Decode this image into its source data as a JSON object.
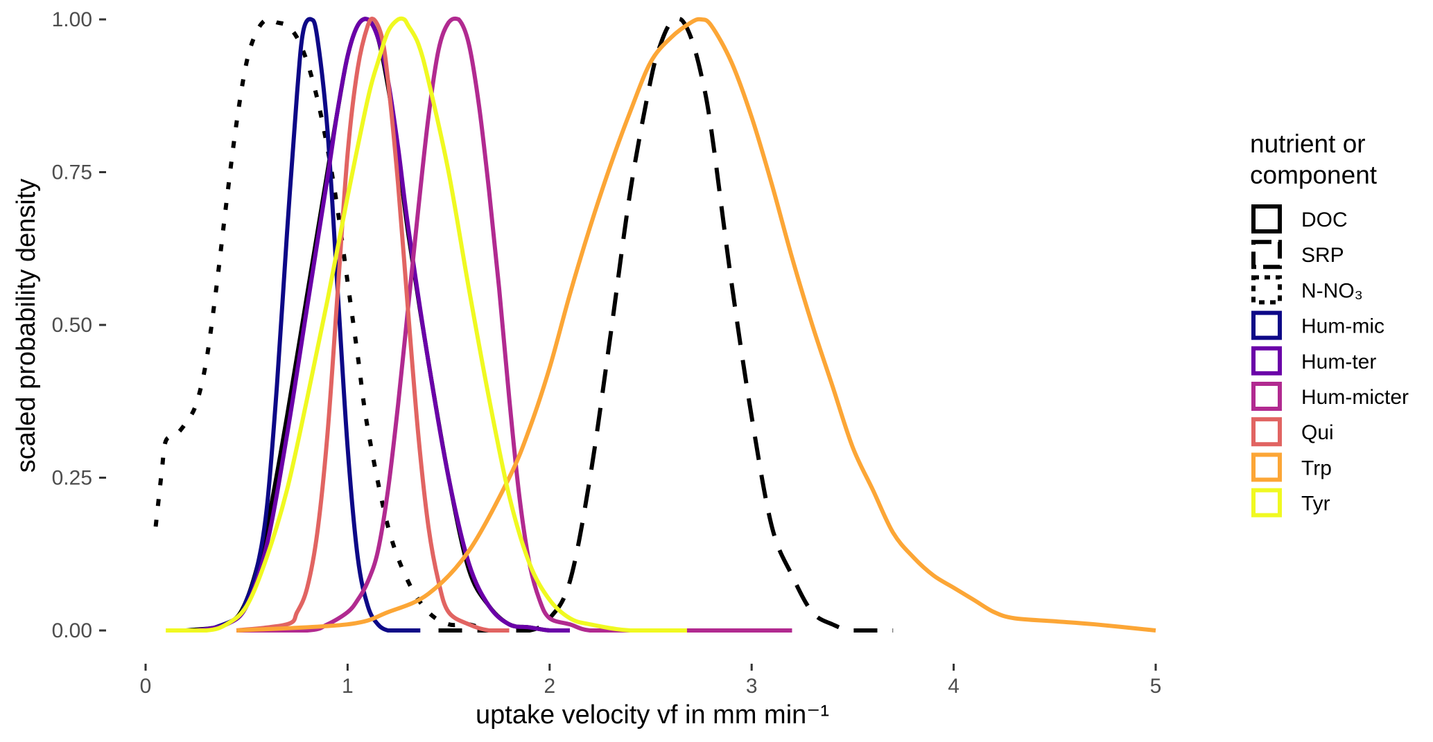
{
  "chart_data": {
    "type": "line",
    "xlabel": "uptake velocity vf in mm min⁻¹",
    "ylabel": "scaled probability density",
    "xlim": [
      0,
      5
    ],
    "ylim": [
      0,
      1
    ],
    "x_ticks": [
      "0",
      "1",
      "2",
      "3",
      "4",
      "5"
    ],
    "y_ticks": [
      "0.00",
      "0.25",
      "0.50",
      "0.75",
      "1.00"
    ],
    "grid": false,
    "legend": {
      "title_lines": [
        "nutrient or",
        "component"
      ],
      "position": "right"
    },
    "series": [
      {
        "name": "DOC",
        "color": "#000000",
        "style": "solid",
        "x": [
          0.2,
          0.4,
          0.5,
          0.6,
          0.7,
          0.8,
          0.9,
          0.95,
          1.0,
          1.05,
          1.1,
          1.15,
          1.2,
          1.25,
          1.3,
          1.4,
          1.5,
          1.6,
          1.7,
          1.8,
          1.9,
          2.0,
          2.1
        ],
        "y": [
          0.0,
          0.01,
          0.05,
          0.17,
          0.35,
          0.55,
          0.75,
          0.85,
          0.94,
          0.99,
          1.0,
          0.97,
          0.89,
          0.78,
          0.65,
          0.44,
          0.25,
          0.1,
          0.04,
          0.01,
          0.005,
          0.0,
          0.0
        ]
      },
      {
        "name": "SRP",
        "color": "#000000",
        "style": "dashed",
        "x": [
          1.45,
          1.7,
          1.9,
          2.0,
          2.1,
          2.2,
          2.3,
          2.4,
          2.5,
          2.55,
          2.6,
          2.65,
          2.7,
          2.75,
          2.8,
          2.9,
          3.0,
          3.1,
          3.2,
          3.3,
          3.4,
          3.5,
          3.7
        ],
        "y": [
          0.0,
          0.0,
          0.0,
          0.02,
          0.08,
          0.25,
          0.48,
          0.72,
          0.9,
          0.96,
          0.995,
          1.0,
          0.97,
          0.91,
          0.82,
          0.57,
          0.35,
          0.17,
          0.09,
          0.03,
          0.01,
          0.0,
          0.0
        ]
      },
      {
        "name": "N-NO₃",
        "color": "#000000",
        "style": "dotted",
        "x": [
          0.05,
          0.08,
          0.1,
          0.15,
          0.2,
          0.25,
          0.3,
          0.35,
          0.4,
          0.45,
          0.5,
          0.55,
          0.6,
          0.65,
          0.7,
          0.75,
          0.8,
          0.85,
          0.9,
          0.95,
          1.0,
          1.05,
          1.1,
          1.2,
          1.3,
          1.4,
          1.5,
          1.6,
          1.7,
          1.8
        ],
        "y": [
          0.17,
          0.26,
          0.31,
          0.32,
          0.34,
          0.37,
          0.44,
          0.56,
          0.7,
          0.83,
          0.93,
          0.98,
          1.0,
          0.995,
          0.99,
          0.97,
          0.93,
          0.87,
          0.79,
          0.69,
          0.57,
          0.45,
          0.33,
          0.17,
          0.08,
          0.03,
          0.01,
          0.01,
          0.0,
          0.0
        ]
      },
      {
        "name": "Hum-mic",
        "color": "#0d0887",
        "style": "solid",
        "x": [
          0.3,
          0.45,
          0.5,
          0.55,
          0.6,
          0.65,
          0.7,
          0.75,
          0.78,
          0.82,
          0.85,
          0.9,
          0.95,
          1.0,
          1.05,
          1.1,
          1.15,
          1.2,
          1.25,
          1.3,
          1.36
        ],
        "y": [
          0.0,
          0.02,
          0.05,
          0.1,
          0.2,
          0.4,
          0.65,
          0.88,
          0.98,
          1.0,
          0.97,
          0.82,
          0.56,
          0.3,
          0.12,
          0.04,
          0.01,
          0.0,
          0.0,
          0.0,
          0.0
        ]
      },
      {
        "name": "Hum-ter",
        "color": "#6a00a8",
        "style": "solid",
        "x": [
          0.25,
          0.4,
          0.5,
          0.6,
          0.7,
          0.8,
          0.9,
          0.95,
          1.0,
          1.05,
          1.1,
          1.15,
          1.2,
          1.25,
          1.3,
          1.4,
          1.5,
          1.6,
          1.7,
          1.8,
          1.9,
          2.0,
          2.1
        ],
        "y": [
          0.0,
          0.01,
          0.04,
          0.14,
          0.32,
          0.53,
          0.74,
          0.85,
          0.94,
          0.99,
          1.0,
          0.97,
          0.9,
          0.79,
          0.66,
          0.44,
          0.25,
          0.11,
          0.04,
          0.01,
          0.005,
          0.0,
          0.0
        ]
      },
      {
        "name": "Hum-micter",
        "color": "#b12a90",
        "style": "solid",
        "x": [
          0.45,
          0.8,
          0.9,
          1.0,
          1.05,
          1.1,
          1.15,
          1.2,
          1.25,
          1.3,
          1.35,
          1.4,
          1.45,
          1.5,
          1.55,
          1.6,
          1.65,
          1.7,
          1.75,
          1.8,
          1.85,
          1.9,
          1.95,
          2.0,
          2.1,
          2.2,
          2.4,
          3.2
        ],
        "y": [
          0.0,
          0.0,
          0.01,
          0.03,
          0.05,
          0.08,
          0.13,
          0.23,
          0.37,
          0.53,
          0.69,
          0.84,
          0.95,
          0.995,
          1.0,
          0.96,
          0.86,
          0.72,
          0.56,
          0.38,
          0.22,
          0.11,
          0.05,
          0.02,
          0.01,
          0.0,
          0.0,
          0.0
        ]
      },
      {
        "name": "Qui",
        "color": "#e16462",
        "style": "solid",
        "x": [
          0.45,
          0.7,
          0.75,
          0.8,
          0.85,
          0.9,
          0.95,
          1.0,
          1.05,
          1.1,
          1.13,
          1.17,
          1.2,
          1.25,
          1.3,
          1.35,
          1.4,
          1.45,
          1.5,
          1.6,
          1.7,
          1.8
        ],
        "y": [
          0.0,
          0.01,
          0.03,
          0.07,
          0.16,
          0.32,
          0.55,
          0.78,
          0.92,
          0.99,
          1.0,
          0.97,
          0.9,
          0.73,
          0.52,
          0.32,
          0.17,
          0.08,
          0.03,
          0.01,
          0.0,
          0.0
        ]
      },
      {
        "name": "Trp",
        "color": "#fca636",
        "style": "solid",
        "x": [
          0.45,
          1.0,
          1.2,
          1.4,
          1.6,
          1.8,
          1.9,
          2.0,
          2.1,
          2.2,
          2.3,
          2.4,
          2.5,
          2.6,
          2.7,
          2.75,
          2.8,
          2.9,
          3.0,
          3.1,
          3.2,
          3.3,
          3.4,
          3.5,
          3.6,
          3.7,
          3.8,
          3.9,
          4.0,
          4.1,
          4.2,
          4.3,
          4.5,
          4.7,
          5.0
        ],
        "y": [
          0.0,
          0.01,
          0.03,
          0.06,
          0.13,
          0.25,
          0.33,
          0.43,
          0.55,
          0.66,
          0.76,
          0.85,
          0.93,
          0.97,
          0.995,
          1.0,
          0.99,
          0.93,
          0.84,
          0.73,
          0.61,
          0.5,
          0.4,
          0.3,
          0.23,
          0.16,
          0.12,
          0.09,
          0.07,
          0.05,
          0.03,
          0.02,
          0.015,
          0.01,
          0.0
        ]
      },
      {
        "name": "Tyr",
        "color": "#f0f921",
        "style": "solid",
        "x": [
          0.1,
          0.3,
          0.4,
          0.5,
          0.6,
          0.7,
          0.8,
          0.9,
          1.0,
          1.1,
          1.15,
          1.2,
          1.25,
          1.28,
          1.3,
          1.35,
          1.4,
          1.5,
          1.6,
          1.7,
          1.8,
          1.9,
          2.0,
          2.1,
          2.2,
          2.4,
          2.68
        ],
        "y": [
          0.0,
          0.0,
          0.01,
          0.04,
          0.12,
          0.23,
          0.38,
          0.54,
          0.71,
          0.87,
          0.93,
          0.98,
          1.0,
          1.0,
          0.99,
          0.96,
          0.9,
          0.75,
          0.56,
          0.38,
          0.22,
          0.11,
          0.05,
          0.02,
          0.01,
          0.0,
          0.0
        ]
      }
    ]
  }
}
